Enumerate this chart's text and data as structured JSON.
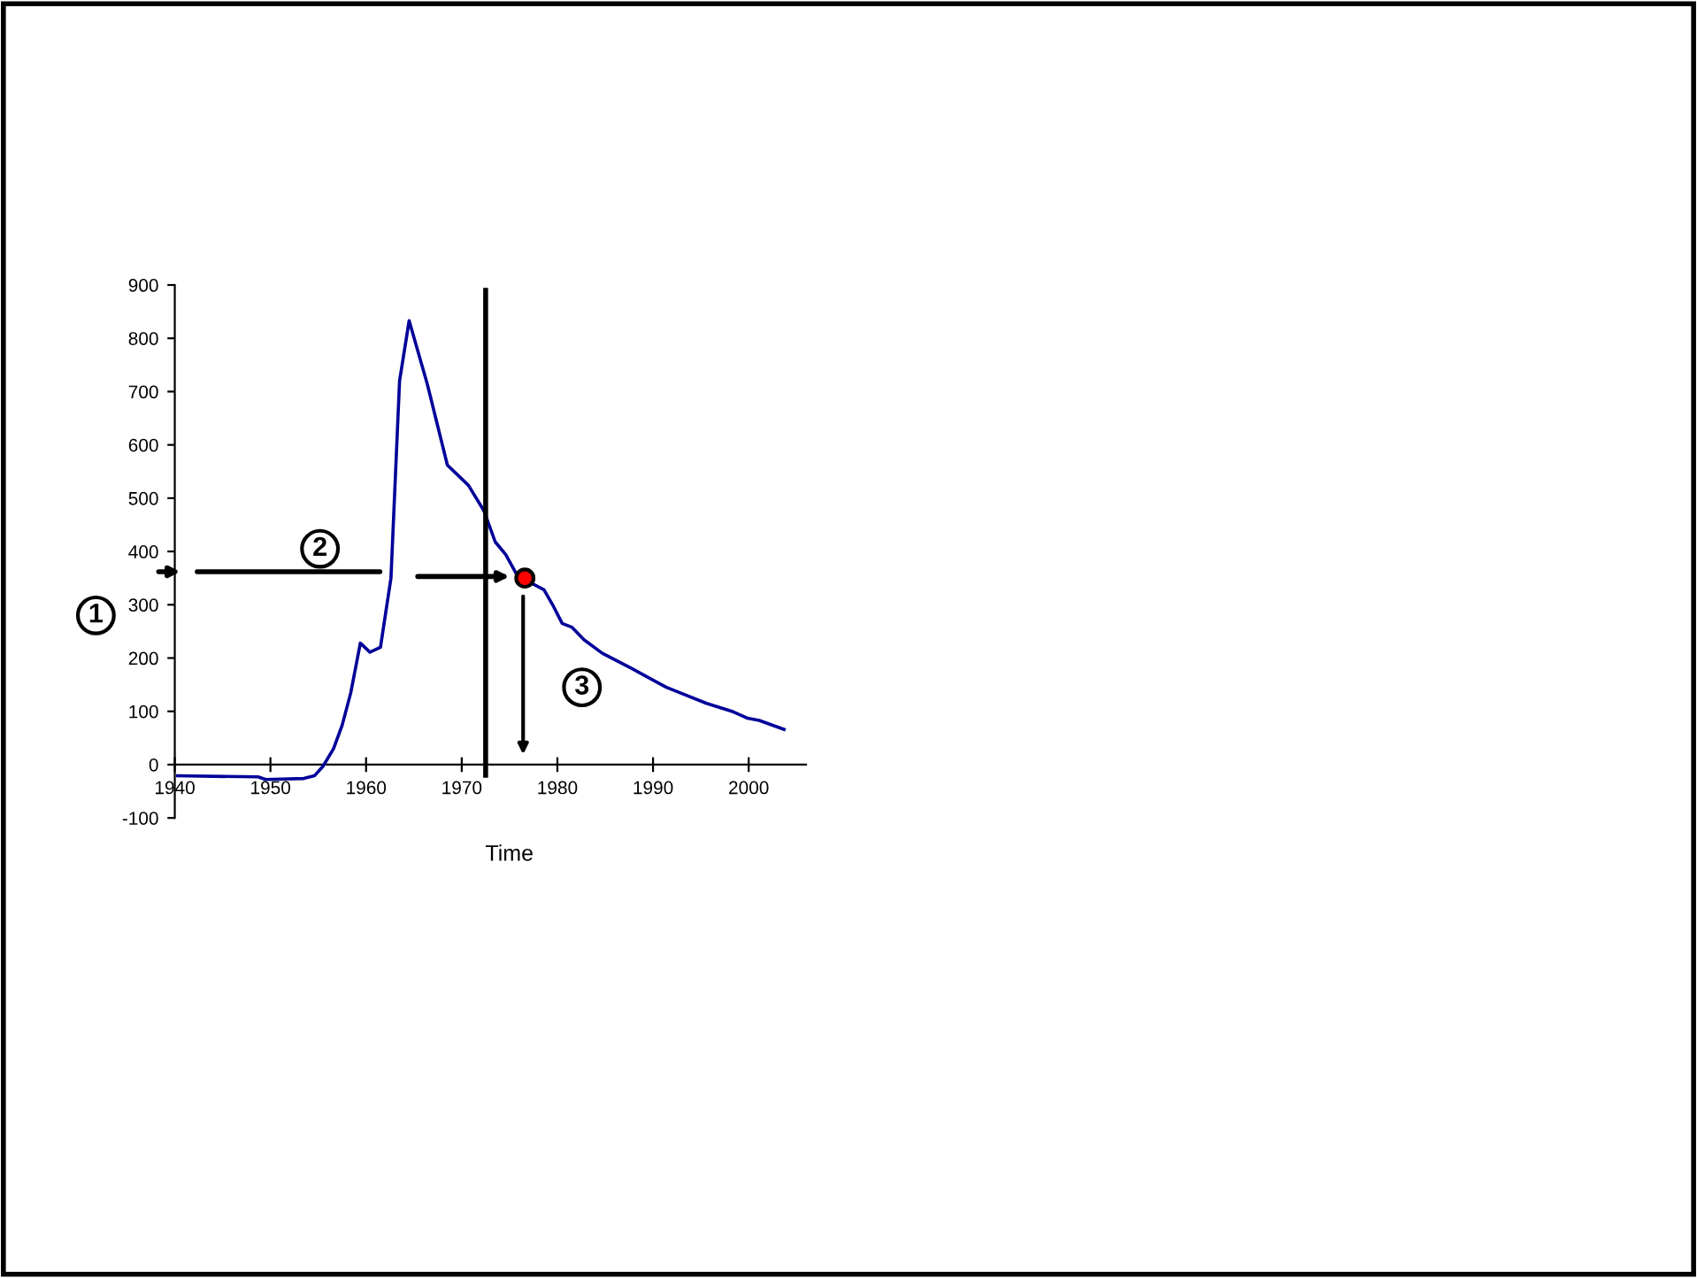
{
  "chart_data": {
    "type": "line",
    "xlabel": "Time",
    "x": [
      1940.3,
      1948.7,
      1949.5,
      1953.5,
      1954.6,
      1955.5,
      1956.6,
      1957.5,
      1958.4,
      1959.4,
      1960.4,
      1961.5,
      1962.6,
      1963.5,
      1964.5,
      1966.4,
      1968.5,
      1970.7,
      1972.3,
      1973.5,
      1974.6,
      1975.8,
      1976.6,
      1978.6,
      1979.5,
      1980.5,
      1981.5,
      1982.8,
      1984.7,
      1987.7,
      1991.4,
      1995.6,
      1998.4,
      1999.9,
      2001.1,
      2003.7
    ],
    "series": [
      {
        "color": "#000099",
        "values": [
          -21,
          -23,
          -28,
          -26,
          -21,
          -3,
          30,
          74,
          135,
          228,
          211,
          220,
          350,
          720,
          833,
          714,
          562,
          524,
          477,
          418,
          394,
          355,
          347,
          328,
          300,
          265,
          258,
          234,
          209,
          181,
          145,
          115,
          99,
          87,
          83,
          66
        ]
      },
      {
        "type": "scatter",
        "color": "#ff0000",
        "x": [
          1976.6
        ],
        "values": [
          350
        ],
        "marker": "circle"
      }
    ],
    "xlim": [
      1940,
      2006
    ],
    "xticks": [
      1940,
      1950,
      1960,
      1970,
      1980,
      1990,
      2000
    ],
    "ylim": [
      -100,
      900
    ],
    "yticks": [
      -100,
      0,
      100,
      200,
      300,
      400,
      500,
      600,
      700,
      800,
      900
    ],
    "ref_lines": [
      {
        "axis": "x",
        "value": 1972.5,
        "color": "#000000"
      }
    ],
    "annotations": [
      "1",
      "2",
      "3"
    ],
    "grid": false,
    "legend": false
  }
}
